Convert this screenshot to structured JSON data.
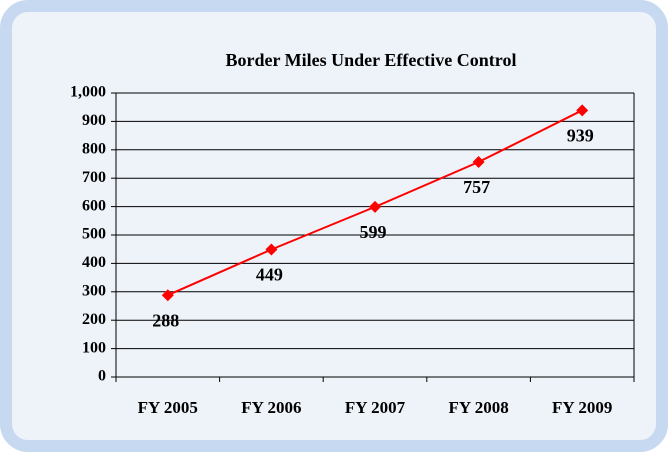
{
  "chart_data": {
    "type": "line",
    "title": "Border Miles Under Effective Control",
    "categories": [
      "FY 2005",
      "FY 2006",
      "FY 2007",
      "FY 2008",
      "FY 2009"
    ],
    "values": [
      288,
      449,
      599,
      757,
      939
    ],
    "color": "#ff0000",
    "ylim": [
      0,
      1000
    ],
    "yticks": [
      0,
      100,
      200,
      300,
      400,
      500,
      600,
      700,
      800,
      900,
      {
        "value": 1000,
        "label": "1,000"
      }
    ],
    "grid": true
  }
}
